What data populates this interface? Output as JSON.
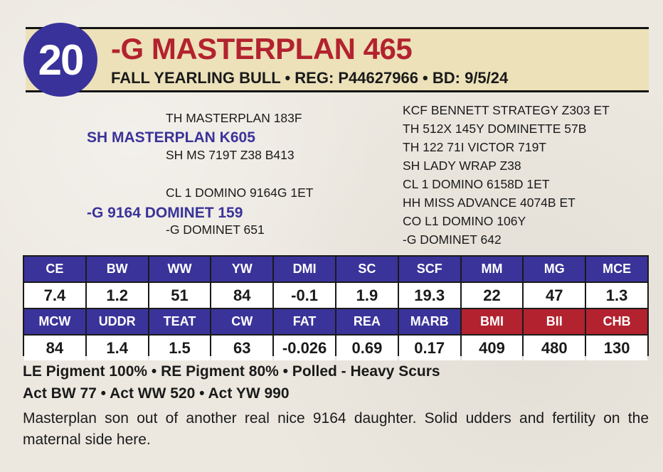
{
  "lot": {
    "number": "20",
    "name": "-G MASTERPLAN 465",
    "subtitle": "FALL YEARLING BULL • REG: P44627966 • BD: 9/5/24"
  },
  "pedigree": {
    "sire_sire": "TH MASTERPLAN 183F",
    "sire": "SH MASTERPLAN K605",
    "sire_dam": "SH MS 719T Z38 B413",
    "dam_sire": "CL 1 DOMINO 9164G 1ET",
    "dam": "-G 9164 DOMINET 159",
    "dam_dam": "-G DOMINET 651",
    "ancestors": [
      "KCF BENNETT STRATEGY Z303 ET",
      "TH 512X 145Y DOMINETTE 57B",
      "TH 122 71I VICTOR 719T",
      "SH LADY WRAP Z38",
      "CL 1 DOMINO 6158D 1ET",
      "HH MISS ADVANCE 4074B ET",
      "CO L1 DOMINO 106Y",
      "-G DOMINET 642"
    ]
  },
  "epds": {
    "row1_headers": [
      "CE",
      "BW",
      "WW",
      "YW",
      "DMI",
      "SC",
      "SCF",
      "MM",
      "MG",
      "MCE"
    ],
    "row1_values": [
      "7.4",
      "1.2",
      "51",
      "84",
      "-0.1",
      "1.9",
      "19.3",
      "22",
      "47",
      "1.3"
    ],
    "row2_headers": [
      "MCW",
      "UDDR",
      "TEAT",
      "CW",
      "FAT",
      "REA",
      "MARB",
      "BMI",
      "BII",
      "CHB"
    ],
    "row2_values": [
      "84",
      "1.4",
      "1.5",
      "63",
      "-0.026",
      "0.69",
      "0.17",
      "409",
      "480",
      "130"
    ],
    "header_color": "#3a3399",
    "index_header_color": "#b3222f"
  },
  "notes": {
    "line1": "LE Pigment 100% • RE Pigment 80% • Polled - Heavy Scurs",
    "line2": "Act BW 77 • Act WW 520 • Act YW 990",
    "comments": "Masterplan son out of another real nice 9164 daughter. Solid udders and fertility on the maternal side here."
  }
}
